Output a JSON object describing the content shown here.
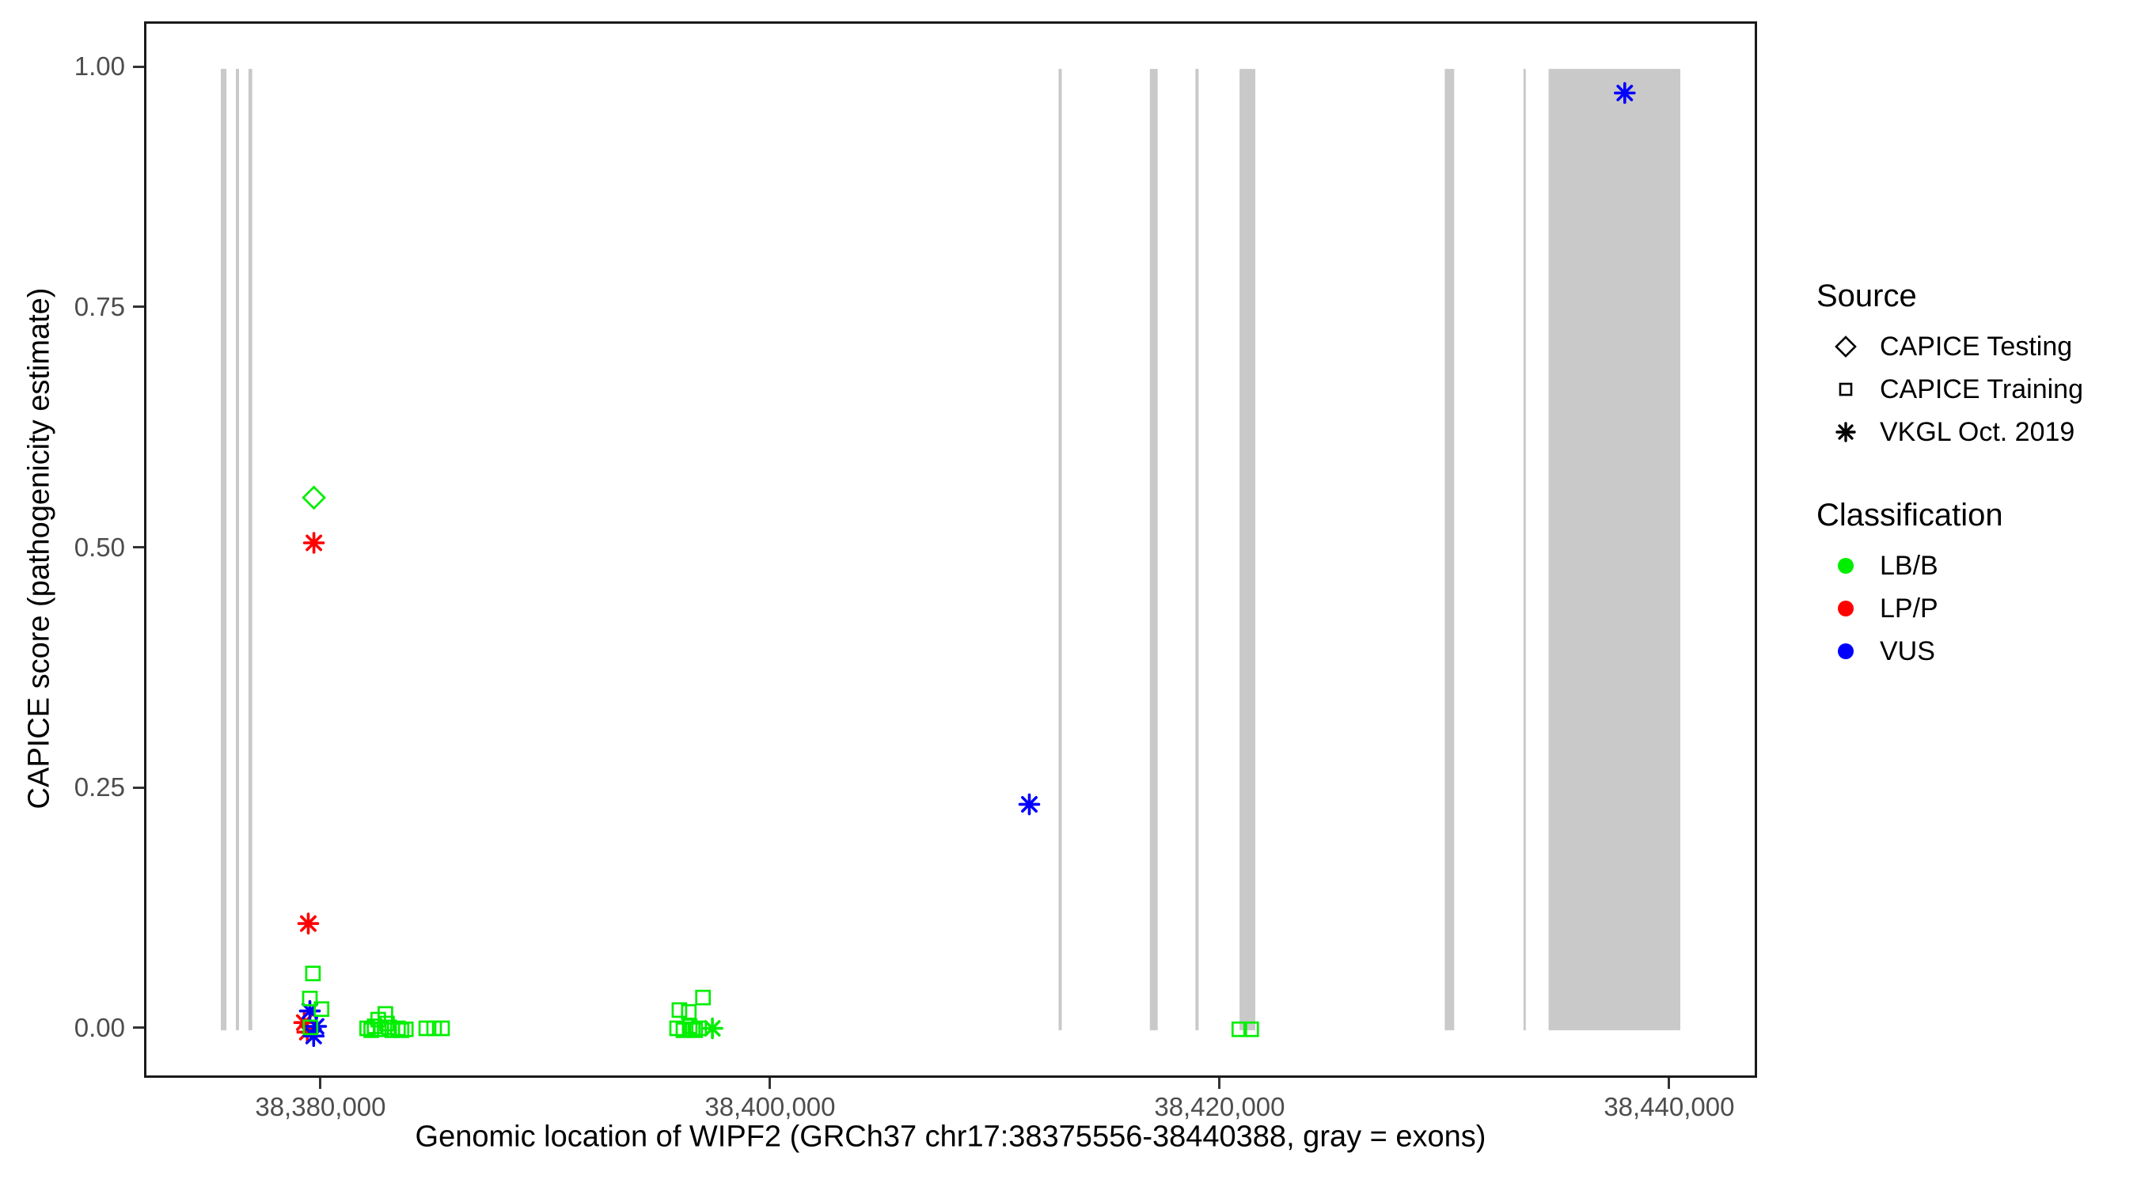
{
  "figure": {
    "background": "#FFFFFF",
    "panel_border_color": "#1A1A1A",
    "tick_label_color": "#4D4D4D"
  },
  "chart_data": {
    "type": "scatter",
    "title": "",
    "xlabel": "Genomic location of WIPF2 (GRCh37 chr17:38375556-38440388, gray = exons)",
    "ylabel": "CAPICE score (pathogenicity estimate)",
    "grid": "off",
    "legend_position": "right",
    "x_axis": {
      "min": 38372150,
      "max": 38443700,
      "ticks": [
        {
          "value": 38380000,
          "label": "38,380,000"
        },
        {
          "value": 38400000,
          "label": "38,400,000"
        },
        {
          "value": 38420000,
          "label": "38,420,000"
        },
        {
          "value": 38440000,
          "label": "38,440,000"
        }
      ]
    },
    "y_axis": {
      "min": -0.047,
      "max": 1.047,
      "ticks": [
        {
          "value": 0.0,
          "label": "0.00"
        },
        {
          "value": 0.25,
          "label": "0.25"
        },
        {
          "value": 0.5,
          "label": "0.50"
        },
        {
          "value": 0.75,
          "label": "0.75"
        },
        {
          "value": 1.0,
          "label": "1.00"
        }
      ]
    },
    "exon_color": "#C9C9C9",
    "exon_y_span": [
      0.0,
      1.0
    ],
    "exons": [
      [
        38375460,
        38375710
      ],
      [
        38376130,
        38376270
      ],
      [
        38376690,
        38376860
      ],
      [
        38412730,
        38412870
      ],
      [
        38416790,
        38417140
      ],
      [
        38418820,
        38418960
      ],
      [
        38420780,
        38421480
      ],
      [
        38429910,
        38430330
      ],
      [
        38433410,
        38433510
      ],
      [
        38434530,
        38440388
      ]
    ],
    "series": [
      {
        "name": "CAPICE Testing / LB/B",
        "source": "CAPICE Testing",
        "classification": "LB/B",
        "shape": "diamond",
        "color": "#00EE00",
        "points": [
          [
            38379600,
            0.554
          ]
        ]
      },
      {
        "name": "VKGL Oct. 2019 / LP/P",
        "source": "VKGL Oct. 2019",
        "classification": "LP/P",
        "shape": "asterisk",
        "color": "#FF0000",
        "points": [
          [
            38379600,
            0.507
          ],
          [
            38379350,
            0.111
          ],
          [
            38379170,
            0.008
          ],
          [
            38379310,
            -0.002
          ]
        ]
      },
      {
        "name": "VKGL Oct. 2019 / VUS",
        "source": "VKGL Oct. 2019",
        "classification": "VUS",
        "shape": "asterisk",
        "color": "#0000FF",
        "points": [
          [
            38379420,
            0.02
          ],
          [
            38379700,
            0.004
          ],
          [
            38379590,
            -0.006
          ],
          [
            38411430,
            0.235
          ],
          [
            38437920,
            0.975
          ]
        ]
      },
      {
        "name": "VKGL Oct. 2019 / LB/B",
        "source": "VKGL Oct. 2019",
        "classification": "LB/B",
        "shape": "asterisk",
        "color": "#00EE00",
        "points": [
          [
            38397330,
            0.002
          ]
        ]
      },
      {
        "name": "CAPICE Training / LB/B",
        "source": "CAPICE Training",
        "classification": "LB/B",
        "shape": "square",
        "color": "#00EE00",
        "points": [
          [
            38379560,
            0.059
          ],
          [
            38379420,
            0.033
          ],
          [
            38379940,
            0.022
          ],
          [
            38379450,
            0.003
          ],
          [
            38381970,
            0.002
          ],
          [
            38382150,
            0.0
          ],
          [
            38382300,
            0.004
          ],
          [
            38382460,
            0.011
          ],
          [
            38382600,
            0.001
          ],
          [
            38382780,
            0.017
          ],
          [
            38382850,
            0.007
          ],
          [
            38382950,
            0.003
          ],
          [
            38383090,
            0.0
          ],
          [
            38383340,
            0.002
          ],
          [
            38383500,
            0.0
          ],
          [
            38383690,
            0.001
          ],
          [
            38384600,
            0.002
          ],
          [
            38384950,
            0.002
          ],
          [
            38385300,
            0.002
          ],
          [
            38395760,
            0.002
          ],
          [
            38395860,
            0.021
          ],
          [
            38396040,
            0.0
          ],
          [
            38396280,
            0.019
          ],
          [
            38396320,
            0.004
          ],
          [
            38396450,
            0.001
          ],
          [
            38396560,
            0.0
          ],
          [
            38396740,
            0.002
          ],
          [
            38396910,
            0.034
          ],
          [
            38420770,
            0.001
          ],
          [
            38421300,
            0.001
          ]
        ]
      }
    ],
    "legend": {
      "source_title": "Source",
      "source_items": [
        {
          "label": "CAPICE Testing",
          "shape": "diamond"
        },
        {
          "label": "CAPICE Training",
          "shape": "square"
        },
        {
          "label": "VKGL Oct. 2019",
          "shape": "asterisk"
        }
      ],
      "classification_title": "Classification",
      "classification_items": [
        {
          "label": "LB/B",
          "color": "#00EE00"
        },
        {
          "label": "LP/P",
          "color": "#FF0000"
        },
        {
          "label": "VUS",
          "color": "#0000FF"
        }
      ]
    }
  }
}
